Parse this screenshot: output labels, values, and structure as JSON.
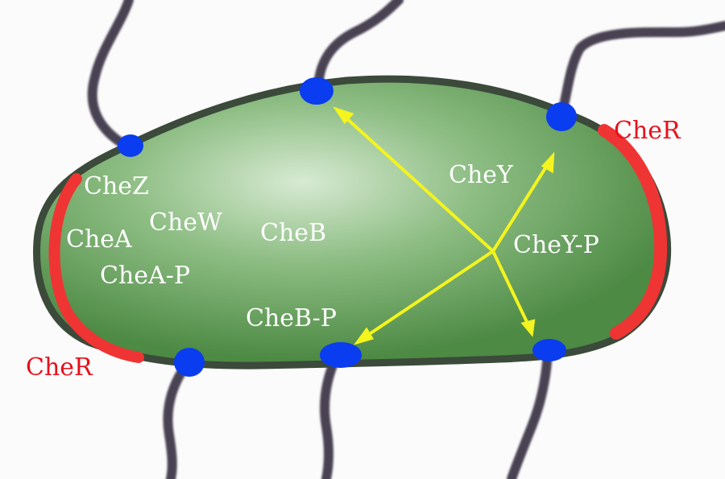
{
  "labels": {
    "cher_right": "CheR",
    "cher_left": "CheR",
    "chez": "CheZ",
    "chea": "CheA",
    "chew": "CheW",
    "cheb": "CheB",
    "chea_p": "CheA-P",
    "cheb_p": "CheB-P",
    "chey": "CheY",
    "chey_p": "CheY-P"
  },
  "colors": {
    "cell_fill": "#5f9c55",
    "cell_highlight": "#d7ead2",
    "cell_outline": "#3b4a3a",
    "receptor": "#0a3cf0",
    "cher_patch": "#ef3434",
    "arrow": "#f4f41e",
    "flagella": "#4a4352",
    "label_white": "#ffffff",
    "label_red": "#e8101a"
  }
}
